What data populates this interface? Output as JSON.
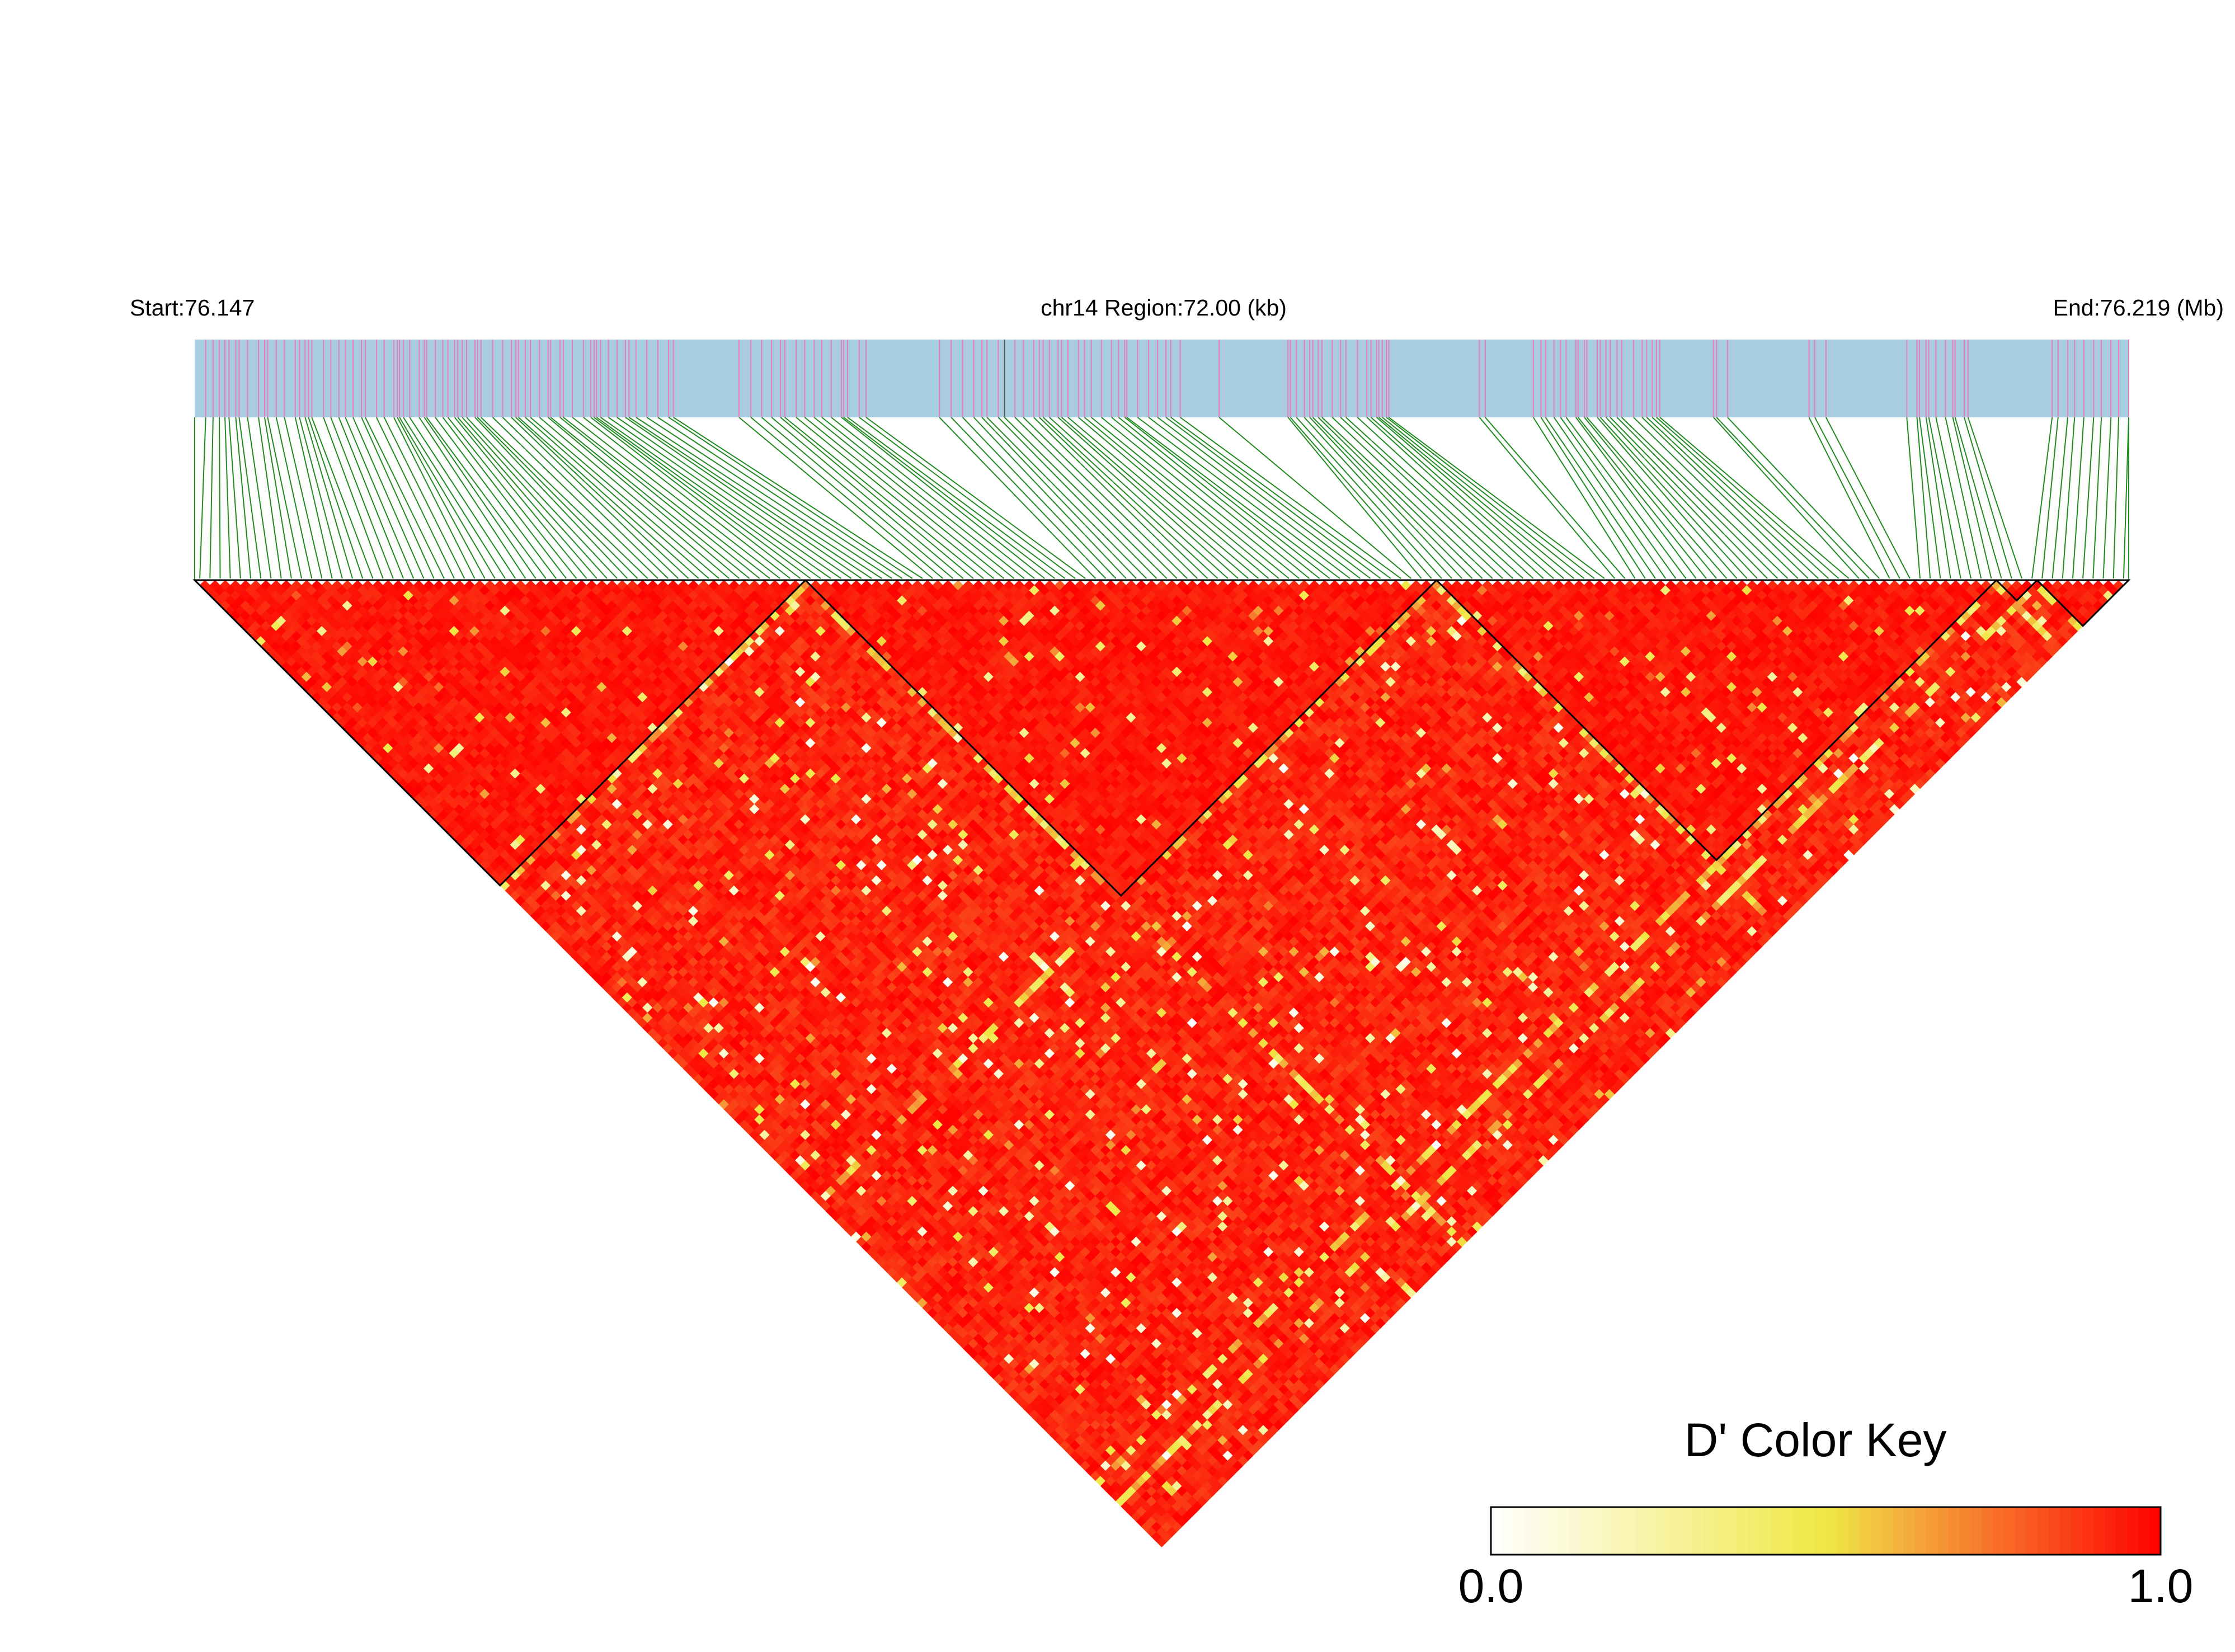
{
  "header": {
    "start_label": "Start:76.147",
    "region_label": "chr14 Region:72.00 (kb)",
    "end_label": "End:76.219 (Mb)"
  },
  "colors": {
    "track_bg": "#a8cde0",
    "snp_tick": "#e67fbf",
    "connector": "#1f8a1f",
    "ld_high": "#ff0000",
    "ld_mid": "#f0e845",
    "ld_low": "#ffffff",
    "block_outline": "#000000"
  },
  "chart_data": {
    "type": "heatmap",
    "title": "",
    "chromosome": "chr14",
    "region_start_mb": 76.147,
    "region_end_mb": 76.219,
    "region_length_kb": 72.0,
    "snp_count": 190,
    "color_key": {
      "title": "D' Color Key",
      "min_label": "0.0",
      "max_label": "1.0",
      "min": 0.0,
      "max": 1.0,
      "stops": [
        {
          "value": 0.0,
          "color": "#ffffff"
        },
        {
          "value": 0.5,
          "color": "#f0e845"
        },
        {
          "value": 0.65,
          "color": "#f5a03a"
        },
        {
          "value": 1.0,
          "color": "#ff0000"
        }
      ]
    },
    "haplotype_blocks": [
      {
        "first_snp": 1,
        "last_snp": 60
      },
      {
        "first_snp": 61,
        "last_snp": 122
      },
      {
        "first_snp": 123,
        "last_snp": 177
      },
      {
        "first_snp": 178,
        "last_snp": 181
      },
      {
        "first_snp": 182,
        "last_snp": 190
      }
    ]
  }
}
